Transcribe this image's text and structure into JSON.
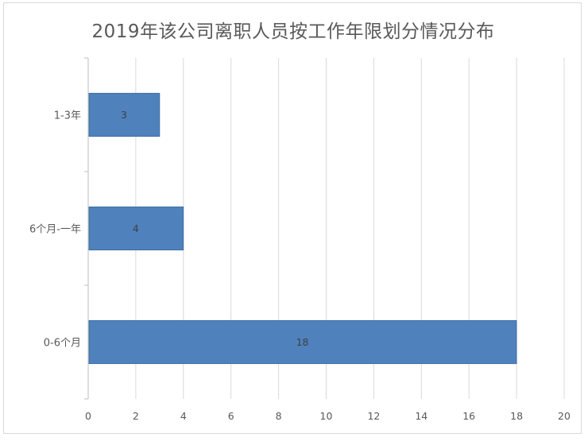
{
  "chart_data": {
    "type": "bar",
    "orientation": "horizontal",
    "title": "2019年该公司离职人员按工作年限划分情况分布",
    "categories": [
      "1-3年",
      "6个月-一年",
      "0-6个月"
    ],
    "values": [
      3,
      4,
      18
    ],
    "xlim": [
      0,
      20
    ],
    "xticks": [
      "0",
      "2",
      "4",
      "6",
      "8",
      "10",
      "12",
      "14",
      "16",
      "18",
      "20"
    ],
    "grid": true,
    "legend": "none",
    "bar_color": "#4f81bd"
  }
}
